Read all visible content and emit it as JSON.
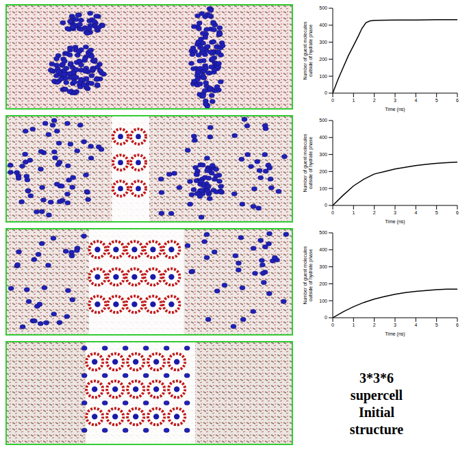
{
  "annotation": "3*3*6 supercell Initial structure",
  "chart_data": [
    {
      "type": "line",
      "x": [
        0,
        0.25,
        0.5,
        0.75,
        1,
        1.25,
        1.4,
        1.6,
        1.8,
        2,
        3,
        4,
        5,
        6
      ],
      "values": [
        0,
        80,
        150,
        220,
        280,
        340,
        380,
        415,
        425,
        428,
        430,
        430,
        432,
        432
      ],
      "color": "#000000",
      "xlabel": "Time (ns)",
      "ylabel": "Number of guest molecules outside of hydrate phase",
      "xlim": [
        0,
        6
      ],
      "ylim": [
        0,
        500
      ],
      "xticks": [
        0,
        1,
        2,
        3,
        4,
        5,
        6
      ],
      "yticks": [
        0,
        100,
        200,
        300,
        400,
        500
      ]
    },
    {
      "type": "line",
      "x": [
        0,
        0.5,
        1,
        1.5,
        2,
        2.5,
        3,
        3.5,
        4,
        4.5,
        5,
        5.5,
        6
      ],
      "values": [
        0,
        60,
        115,
        155,
        185,
        200,
        215,
        225,
        235,
        242,
        248,
        252,
        255
      ],
      "color": "#000000",
      "xlabel": "Time (ns)",
      "ylabel": "Number of guest molecules outside of hydrate phase",
      "xlim": [
        0,
        6
      ],
      "ylim": [
        0,
        500
      ],
      "xticks": [
        0,
        1,
        2,
        3,
        4,
        5,
        6
      ],
      "yticks": [
        0,
        100,
        200,
        300,
        400,
        500
      ]
    },
    {
      "type": "line",
      "x": [
        0,
        0.5,
        1,
        1.5,
        2,
        2.5,
        3,
        3.5,
        4,
        4.5,
        5,
        5.5,
        6
      ],
      "values": [
        0,
        35,
        65,
        90,
        110,
        125,
        138,
        148,
        155,
        160,
        165,
        168,
        168
      ],
      "color": "#000000",
      "xlabel": "Time (ns)",
      "ylabel": "Number of guest molecules outside of hydrate phase",
      "xlim": [
        0,
        6
      ],
      "ylim": [
        0,
        500
      ],
      "xticks": [
        0,
        1,
        2,
        3,
        4,
        5,
        6
      ],
      "yticks": [
        0,
        100,
        200,
        300,
        400,
        500
      ]
    }
  ]
}
